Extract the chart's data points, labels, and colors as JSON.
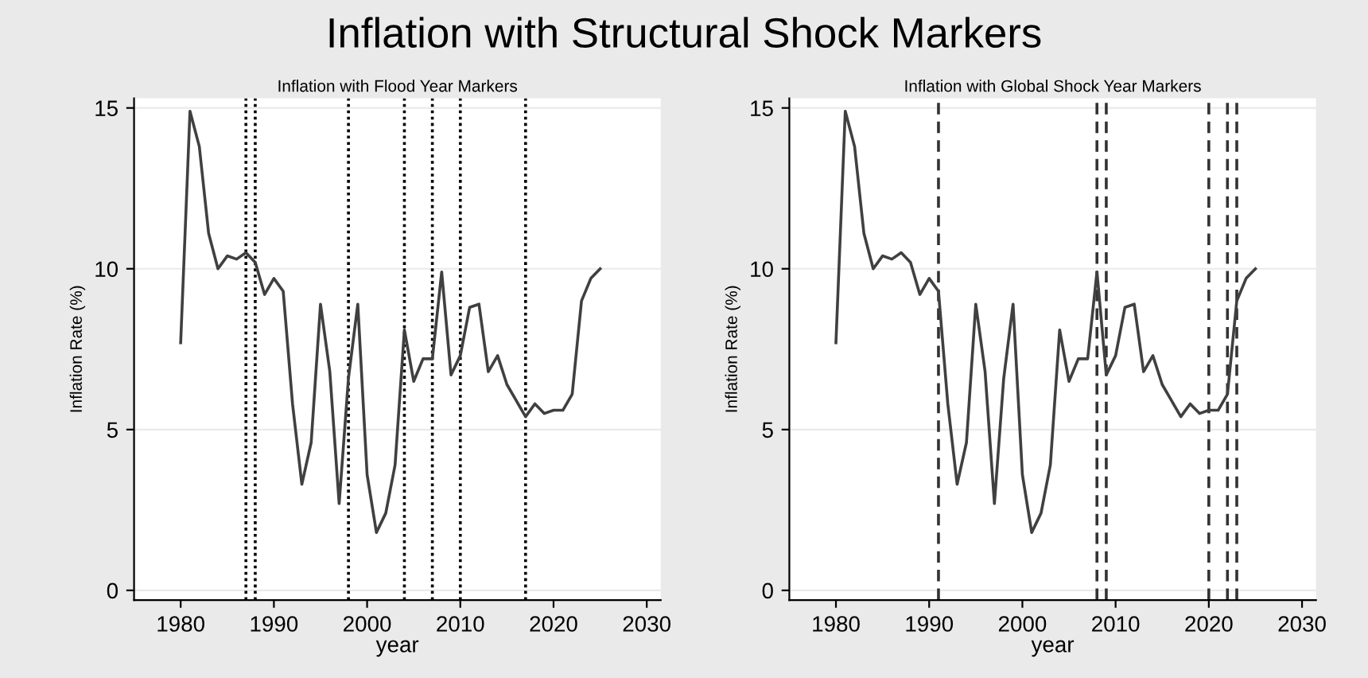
{
  "chart_data": [
    {
      "type": "line",
      "title": "Inflation with Structural Shock Markers",
      "subtitle": "Inflation with Flood Year Markers",
      "xlabel": "year",
      "ylabel": "Inflation Rate (%)",
      "x": [
        1980,
        1981,
        1982,
        1983,
        1984,
        1985,
        1986,
        1987,
        1988,
        1989,
        1990,
        1991,
        1992,
        1993,
        1994,
        1995,
        1996,
        1997,
        1998,
        1999,
        2000,
        2001,
        2002,
        2003,
        2004,
        2005,
        2006,
        2007,
        2008,
        2009,
        2010,
        2011,
        2012,
        2013,
        2014,
        2015,
        2016,
        2017,
        2018,
        2019,
        2020,
        2021,
        2022,
        2023,
        2024,
        2025
      ],
      "series": [
        {
          "color": "#404040",
          "values": [
            7.7,
            14.9,
            13.8,
            11.1,
            10.0,
            10.4,
            10.3,
            10.5,
            10.2,
            9.2,
            9.7,
            9.3,
            5.8,
            3.3,
            4.6,
            8.9,
            6.8,
            2.7,
            6.6,
            8.9,
            3.6,
            1.8,
            2.4,
            3.9,
            8.1,
            6.5,
            7.2,
            7.2,
            9.9,
            6.7,
            7.3,
            8.8,
            8.9,
            6.8,
            7.3,
            6.4,
            5.9,
            5.4,
            5.8,
            5.5,
            5.6,
            5.6,
            6.1,
            9.0,
            9.7,
            10.0
          ]
        }
      ],
      "xlim": [
        1975,
        2031.5
      ],
      "ylim": [
        -0.3,
        15.3
      ],
      "xticks": [
        1980,
        1990,
        2000,
        2010,
        2020,
        2030
      ],
      "yticks": [
        0,
        5,
        10,
        15
      ],
      "grid": "y",
      "marker": "none",
      "line_style": "solid",
      "ref_lines": [
        {
          "axis": "x",
          "value": 1987,
          "color": "#000000",
          "line_style": "dotted"
        },
        {
          "axis": "x",
          "value": 1988,
          "color": "#000000",
          "line_style": "dotted"
        },
        {
          "axis": "x",
          "value": 1998,
          "color": "#000000",
          "line_style": "dotted"
        },
        {
          "axis": "x",
          "value": 2004,
          "color": "#000000",
          "line_style": "dotted"
        },
        {
          "axis": "x",
          "value": 2007,
          "color": "#000000",
          "line_style": "dotted"
        },
        {
          "axis": "x",
          "value": 2010,
          "color": "#000000",
          "line_style": "dotted"
        },
        {
          "axis": "x",
          "value": 2017,
          "color": "#000000",
          "line_style": "dotted"
        }
      ]
    },
    {
      "type": "line",
      "subtitle": "Inflation with Global Shock Year Markers",
      "xlabel": "year",
      "ylabel": "Inflation Rate (%)",
      "x": [
        1980,
        1981,
        1982,
        1983,
        1984,
        1985,
        1986,
        1987,
        1988,
        1989,
        1990,
        1991,
        1992,
        1993,
        1994,
        1995,
        1996,
        1997,
        1998,
        1999,
        2000,
        2001,
        2002,
        2003,
        2004,
        2005,
        2006,
        2007,
        2008,
        2009,
        2010,
        2011,
        2012,
        2013,
        2014,
        2015,
        2016,
        2017,
        2018,
        2019,
        2020,
        2021,
        2022,
        2023,
        2024,
        2025
      ],
      "series": [
        {
          "color": "#404040",
          "values": [
            7.7,
            14.9,
            13.8,
            11.1,
            10.0,
            10.4,
            10.3,
            10.5,
            10.2,
            9.2,
            9.7,
            9.3,
            5.8,
            3.3,
            4.6,
            8.9,
            6.8,
            2.7,
            6.6,
            8.9,
            3.6,
            1.8,
            2.4,
            3.9,
            8.1,
            6.5,
            7.2,
            7.2,
            9.9,
            6.7,
            7.3,
            8.8,
            8.9,
            6.8,
            7.3,
            6.4,
            5.9,
            5.4,
            5.8,
            5.5,
            5.6,
            5.6,
            6.1,
            9.0,
            9.7,
            10.0
          ]
        }
      ],
      "xlim": [
        1975,
        2031.5
      ],
      "ylim": [
        -0.3,
        15.3
      ],
      "xticks": [
        1980,
        1990,
        2000,
        2010,
        2020,
        2030
      ],
      "yticks": [
        0,
        5,
        10,
        15
      ],
      "grid": "y",
      "marker": "none",
      "line_style": "solid",
      "ref_lines": [
        {
          "axis": "x",
          "value": 1991,
          "color": "#333333",
          "line_style": "dashed"
        },
        {
          "axis": "x",
          "value": 2008,
          "color": "#333333",
          "line_style": "dashed"
        },
        {
          "axis": "x",
          "value": 2009,
          "color": "#333333",
          "line_style": "dashed"
        },
        {
          "axis": "x",
          "value": 2020,
          "color": "#333333",
          "line_style": "dashed"
        },
        {
          "axis": "x",
          "value": 2022,
          "color": "#333333",
          "line_style": "dashed"
        },
        {
          "axis": "x",
          "value": 2023,
          "color": "#333333",
          "line_style": "dashed"
        }
      ]
    }
  ]
}
